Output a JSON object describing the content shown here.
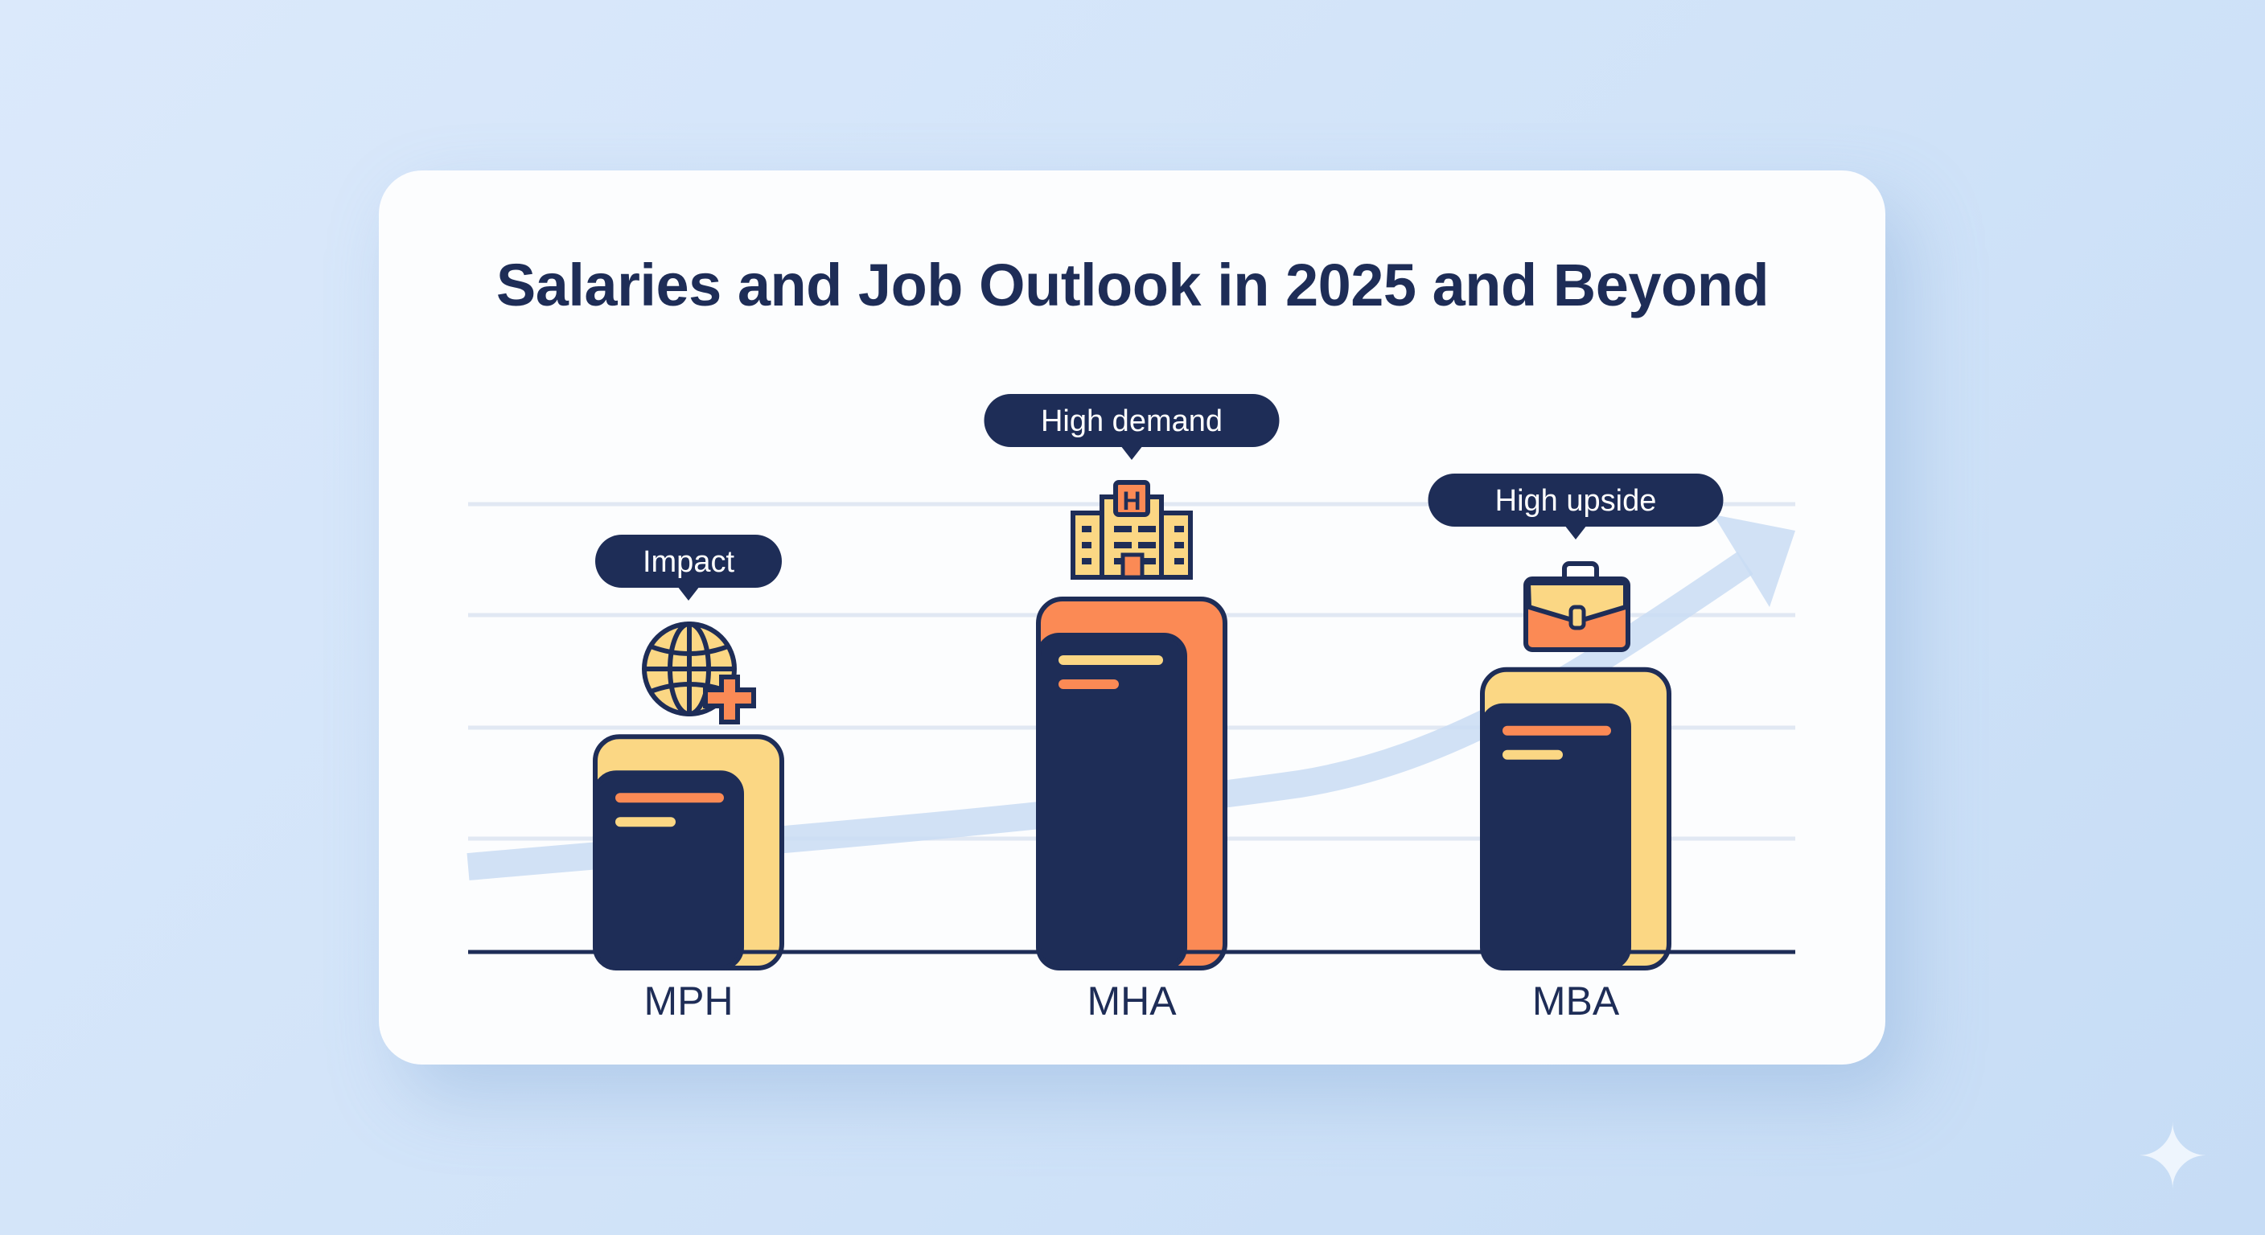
{
  "title": "Salaries and Job Outlook in 2025 and Beyond",
  "colors": {
    "navy": "#1e2d57",
    "orange": "#fb8a55",
    "yellow": "#fbd784",
    "grid": "#e1e8f3",
    "arrow": "#c9dcf3"
  },
  "chart_data": {
    "type": "bar",
    "title": "Salaries and Job Outlook in 2025 and Beyond",
    "categories": [
      "MPH",
      "MHA",
      "MBA"
    ],
    "values": [
      0.61,
      1.0,
      0.8
    ],
    "value_note": "relative bar heights (no numeric axis shown)",
    "ylim": [
      0,
      1.15
    ],
    "grid": true,
    "xlabel": "",
    "ylabel": "",
    "annotations": [
      {
        "category": "MPH",
        "label": "Impact",
        "icon": "globe-plus-icon",
        "accent": "#fbd784"
      },
      {
        "category": "MHA",
        "label": "High demand",
        "icon": "hospital-icon",
        "accent": "#fb8a55"
      },
      {
        "category": "MBA",
        "label": "High upside",
        "icon": "briefcase-icon",
        "accent": "#fbd784"
      }
    ],
    "trend": "upward arrow"
  }
}
